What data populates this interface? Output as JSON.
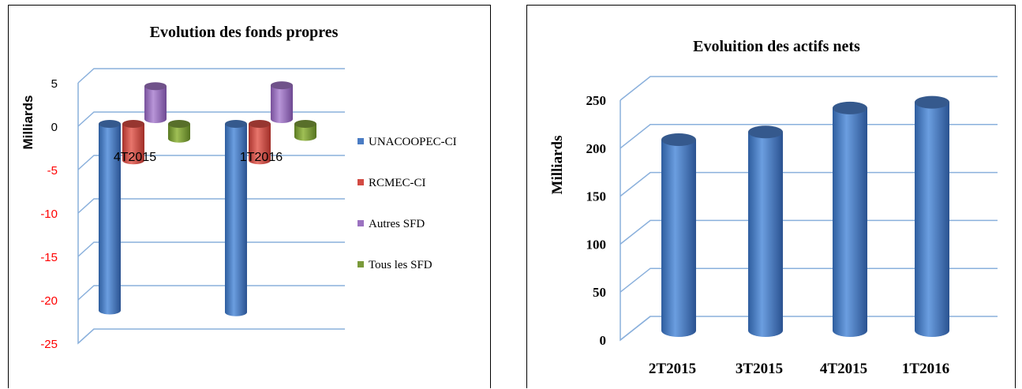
{
  "chart_data": [
    {
      "type": "bar",
      "title": "Evolution des fonds propres",
      "ylabel": "Milliards",
      "xlabel": "",
      "categories": [
        "4T2015",
        "1T2016"
      ],
      "ylim": [
        -25,
        5
      ],
      "yticks": [
        "5",
        "0",
        "-5",
        "-10",
        "-15",
        "-20",
        "-25"
      ],
      "grid": true,
      "legend_position": "right",
      "series": [
        {
          "name": "UNACOOPEC-CI",
          "values": [
            -21.5,
            -21.7
          ],
          "color": "#4a7cc4"
        },
        {
          "name": "RCMEC-CI",
          "values": [
            -4.2,
            -4.2
          ],
          "color": "#d24b43"
        },
        {
          "name": "Autres SFD",
          "values": [
            3.8,
            3.9
          ],
          "color": "#9b72c0"
        },
        {
          "name": "Tous les SFD",
          "values": [
            -1.7,
            -1.5
          ],
          "color": "#7a9a3a"
        }
      ]
    },
    {
      "type": "bar",
      "title": "Evoluition des actifs nets",
      "ylabel": "Milliards",
      "xlabel": "",
      "categories": [
        "2T2015",
        "3T2015",
        "4T2015",
        "1T2016"
      ],
      "ylim": [
        0,
        250
      ],
      "yticks": [
        "250",
        "200",
        "150",
        "100",
        "50",
        "0"
      ],
      "grid": true,
      "series": [
        {
          "values": [
            199,
            207,
            232,
            238
          ],
          "color": "#4a7cc4"
        }
      ]
    }
  ]
}
